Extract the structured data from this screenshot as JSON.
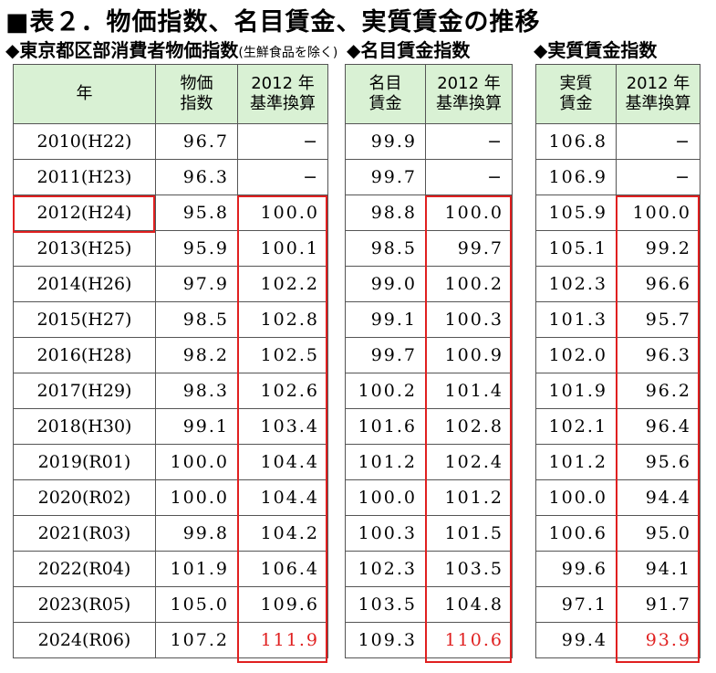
{
  "title": "■表２．物価指数、名目賃金、実質賃金の推移",
  "sections": {
    "cpi": {
      "label": "◆東京都区部消費者物価指数",
      "note": "(生鮮食品を除く)"
    },
    "nominal": {
      "label": "◆名目賃金指数"
    },
    "real": {
      "label": "◆実質賃金指数"
    }
  },
  "headers": {
    "year": "年",
    "cpi_1": "物価",
    "cpi_2": "指数",
    "nom_1": "名目",
    "nom_2": "賃金",
    "real_1": "実質",
    "real_2": "賃金",
    "base_1": "2012 年",
    "base_2": "基準換算"
  },
  "rows": [
    {
      "year": "2010(H22)",
      "cpi": "96.7",
      "cpi2012": "−",
      "nom": "99.9",
      "nom2012": "−",
      "real": "106.8",
      "real2012": "−"
    },
    {
      "year": "2011(H23)",
      "cpi": "96.3",
      "cpi2012": "−",
      "nom": "99.7",
      "nom2012": "−",
      "real": "106.9",
      "real2012": "−"
    },
    {
      "year": "2012(H24)",
      "cpi": "95.8",
      "cpi2012": "100.0",
      "nom": "98.8",
      "nom2012": "100.0",
      "real": "105.9",
      "real2012": "100.0"
    },
    {
      "year": "2013(H25)",
      "cpi": "95.9",
      "cpi2012": "100.1",
      "nom": "98.5",
      "nom2012": "99.7",
      "real": "105.1",
      "real2012": "99.2"
    },
    {
      "year": "2014(H26)",
      "cpi": "97.9",
      "cpi2012": "102.2",
      "nom": "99.0",
      "nom2012": "100.2",
      "real": "102.3",
      "real2012": "96.6"
    },
    {
      "year": "2015(H27)",
      "cpi": "98.5",
      "cpi2012": "102.8",
      "nom": "99.1",
      "nom2012": "100.3",
      "real": "101.3",
      "real2012": "95.7"
    },
    {
      "year": "2016(H28)",
      "cpi": "98.2",
      "cpi2012": "102.5",
      "nom": "99.7",
      "nom2012": "100.9",
      "real": "102.0",
      "real2012": "96.3"
    },
    {
      "year": "2017(H29)",
      "cpi": "98.3",
      "cpi2012": "102.6",
      "nom": "100.2",
      "nom2012": "101.4",
      "real": "101.9",
      "real2012": "96.2"
    },
    {
      "year": "2018(H30)",
      "cpi": "99.1",
      "cpi2012": "103.4",
      "nom": "101.6",
      "nom2012": "102.8",
      "real": "102.1",
      "real2012": "96.4"
    },
    {
      "year": "2019(R01)",
      "cpi": "100.0",
      "cpi2012": "104.4",
      "nom": "101.2",
      "nom2012": "102.4",
      "real": "101.2",
      "real2012": "95.6"
    },
    {
      "year": "2020(R02)",
      "cpi": "100.0",
      "cpi2012": "104.4",
      "nom": "100.0",
      "nom2012": "101.2",
      "real": "100.0",
      "real2012": "94.4"
    },
    {
      "year": "2021(R03)",
      "cpi": "99.8",
      "cpi2012": "104.2",
      "nom": "100.3",
      "nom2012": "101.5",
      "real": "100.6",
      "real2012": "95.0"
    },
    {
      "year": "2022(R04)",
      "cpi": "101.9",
      "cpi2012": "106.4",
      "nom": "102.3",
      "nom2012": "103.5",
      "real": "99.6",
      "real2012": "94.1"
    },
    {
      "year": "2023(R05)",
      "cpi": "105.0",
      "cpi2012": "109.6",
      "nom": "103.5",
      "nom2012": "104.8",
      "real": "97.1",
      "real2012": "91.7"
    },
    {
      "year": "2024(R06)",
      "cpi": "107.2",
      "cpi2012": "111.9",
      "nom": "109.3",
      "nom2012": "110.6",
      "real": "99.4",
      "real2012": "93.9"
    }
  ],
  "colors": {
    "header_bg": "#d9f1d4",
    "highlight": "#e02020"
  }
}
